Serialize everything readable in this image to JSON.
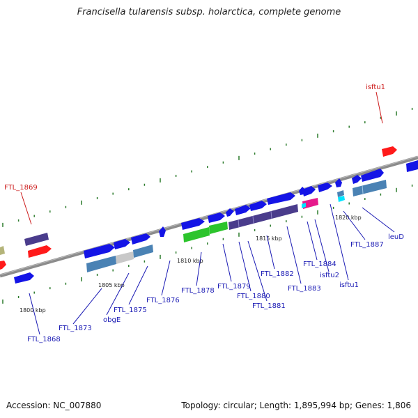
{
  "title": "Francisella tularensis subsp. holarctica, complete genome",
  "footer": {
    "accession": "Accession: NC_007880",
    "topology": "Topology: circular; Length: 1,895,994 bp; Genes: 1,806"
  },
  "colors": {
    "backbone": "#8c8c8c",
    "gene_blue": "#1414e6",
    "gene_purple": "#4a3c8c",
    "gene_steelblue": "#4a82b4",
    "gene_green": "#2cc42c",
    "gene_red": "#ff1a1a",
    "gene_magenta": "#e6198c",
    "gene_cyan": "#00e5ff",
    "gene_grey": "#c8c8c8",
    "gene_olive": "#b4b47a",
    "tick": "#2a7a2a",
    "label_blue": "#1a1ab4",
    "label_red": "#cc1a1a"
  },
  "kbp_ticks": [
    "1800 kbp",
    "1805 kbp",
    "1810 kbp",
    "1815 kbp",
    "1820 kbp"
  ],
  "gene_labels": [
    {
      "text": "FTL_1869",
      "color": "red"
    },
    {
      "text": "isftu1",
      "color": "red"
    },
    {
      "text": "FTL_1868",
      "color": "blue"
    },
    {
      "text": "FTL_1873",
      "color": "blue"
    },
    {
      "text": "obgE",
      "color": "blue"
    },
    {
      "text": "FTL_1875",
      "color": "blue"
    },
    {
      "text": "FTL_1876",
      "color": "blue"
    },
    {
      "text": "FTL_1878",
      "color": "blue"
    },
    {
      "text": "FTL_1879",
      "color": "blue"
    },
    {
      "text": "FTL_1880",
      "color": "blue"
    },
    {
      "text": "FTL_1881",
      "color": "blue"
    },
    {
      "text": "FTL_1882",
      "color": "blue"
    },
    {
      "text": "FTL_1883",
      "color": "blue"
    },
    {
      "text": "FTL_1884",
      "color": "blue"
    },
    {
      "text": "isftu2",
      "color": "blue"
    },
    {
      "text": "isftu1",
      "color": "blue"
    },
    {
      "text": "FTL_1887",
      "color": "blue"
    },
    {
      "text": "leuD",
      "color": "blue"
    }
  ]
}
